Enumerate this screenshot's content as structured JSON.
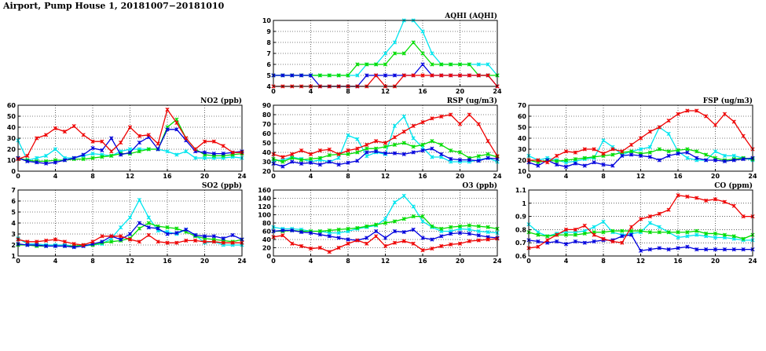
{
  "page": {
    "title": "Airport, Pump House 1, 20181007−20181010"
  },
  "series_colors": {
    "cyan": "#00e5ee",
    "green": "#00dd00",
    "blue": "#0000dd",
    "red": "#ee0000"
  },
  "chart_data": [
    {
      "id": "aqhi",
      "type": "line",
      "title": "AQHI (AQHI)",
      "x": [
        0,
        1,
        2,
        3,
        4,
        5,
        6,
        7,
        8,
        9,
        10,
        11,
        12,
        13,
        14,
        15,
        16,
        17,
        18,
        19,
        20,
        21,
        22,
        23,
        24
      ],
      "xlim": [
        0,
        24
      ],
      "xticks": [
        0,
        4,
        8,
        12,
        16,
        20,
        24
      ],
      "ylim": [
        4,
        10
      ],
      "yticks": [
        4,
        5,
        6,
        7,
        8,
        9,
        10
      ],
      "grid": true,
      "series": [
        {
          "color": "cyan",
          "values": [
            5,
            5,
            5,
            5,
            5,
            5,
            5,
            5,
            5,
            5,
            6,
            6,
            7,
            8,
            10,
            10,
            9,
            7,
            6,
            6,
            6,
            6,
            6,
            6,
            5
          ]
        },
        {
          "color": "green",
          "values": [
            5,
            5,
            5,
            5,
            5,
            5,
            5,
            5,
            5,
            6,
            6,
            6,
            6,
            7,
            7,
            8,
            7,
            6,
            6,
            6,
            6,
            6,
            5,
            5,
            5
          ]
        },
        {
          "color": "blue",
          "values": [
            5,
            5,
            5,
            5,
            5,
            4,
            4,
            4,
            4,
            4,
            5,
            5,
            5,
            5,
            5,
            5,
            6,
            5,
            5,
            5,
            5,
            5,
            5,
            5,
            4
          ]
        },
        {
          "color": "red",
          "values": [
            4,
            4,
            4,
            4,
            4,
            4,
            4,
            4,
            4,
            4,
            4,
            5,
            4,
            4,
            5,
            5,
            5,
            5,
            5,
            5,
            5,
            5,
            5,
            5,
            4
          ]
        }
      ]
    },
    {
      "id": "no2",
      "type": "line",
      "title": "NO2 (ppb)",
      "x": [
        0,
        1,
        2,
        3,
        4,
        5,
        6,
        7,
        8,
        9,
        10,
        11,
        12,
        13,
        14,
        15,
        16,
        17,
        18,
        19,
        20,
        21,
        22,
        23,
        24
      ],
      "xlim": [
        0,
        24
      ],
      "xticks": [
        0,
        4,
        8,
        12,
        16,
        20,
        24
      ],
      "ylim": [
        0,
        60
      ],
      "yticks": [
        0,
        10,
        20,
        30,
        40,
        50,
        60
      ],
      "grid": true,
      "series": [
        {
          "color": "cyan",
          "values": [
            28,
            10,
            12,
            14,
            20,
            12,
            12,
            14,
            16,
            15,
            14,
            18,
            20,
            20,
            20,
            20,
            18,
            15,
            18,
            12,
            12,
            12,
            12,
            13,
            12
          ]
        },
        {
          "color": "green",
          "values": [
            12,
            10,
            9,
            9,
            10,
            10,
            11,
            11,
            12,
            13,
            14,
            16,
            16,
            18,
            20,
            20,
            40,
            47,
            30,
            20,
            15,
            14,
            14,
            15,
            16
          ]
        },
        {
          "color": "blue",
          "values": [
            12,
            9,
            8,
            7,
            8,
            10,
            12,
            15,
            21,
            19,
            30,
            15,
            17,
            26,
            31,
            20,
            38,
            38,
            28,
            18,
            17,
            16,
            16,
            17,
            18
          ]
        },
        {
          "color": "red",
          "values": [
            11,
            14,
            30,
            33,
            39,
            36,
            41,
            33,
            27,
            27,
            18,
            26,
            40,
            32,
            33,
            25,
            56,
            44,
            30,
            20,
            27,
            27,
            23,
            17,
            17
          ]
        }
      ]
    },
    {
      "id": "rsp",
      "type": "line",
      "title": "RSP (ug/m3)",
      "x": [
        0,
        1,
        2,
        3,
        4,
        5,
        6,
        7,
        8,
        9,
        10,
        11,
        12,
        13,
        14,
        15,
        16,
        17,
        18,
        19,
        20,
        21,
        22,
        23,
        24
      ],
      "xlim": [
        0,
        24
      ],
      "xticks": [
        0,
        4,
        8,
        12,
        16,
        20,
        24
      ],
      "ylim": [
        20,
        90
      ],
      "yticks": [
        20,
        30,
        40,
        50,
        60,
        70,
        80,
        90
      ],
      "grid": true,
      "series": [
        {
          "color": "cyan",
          "values": [
            31,
            32,
            35,
            33,
            30,
            32,
            30,
            34,
            58,
            54,
            36,
            40,
            38,
            68,
            78,
            55,
            45,
            35,
            35,
            30,
            30,
            30,
            32,
            34,
            30
          ]
        },
        {
          "color": "green",
          "values": [
            33,
            30,
            34,
            32,
            33,
            34,
            37,
            38,
            38,
            40,
            44,
            44,
            46,
            48,
            50,
            46,
            48,
            52,
            48,
            42,
            40,
            34,
            36,
            38,
            35
          ]
        },
        {
          "color": "blue",
          "values": [
            28,
            25,
            30,
            28,
            29,
            27,
            30,
            27,
            29,
            31,
            40,
            41,
            39,
            39,
            38,
            40,
            42,
            44,
            38,
            33,
            32,
            32,
            31,
            34,
            33
          ]
        },
        {
          "color": "red",
          "values": [
            38,
            35,
            38,
            42,
            38,
            42,
            43,
            38,
            42,
            44,
            48,
            52,
            50,
            56,
            62,
            68,
            72,
            76,
            78,
            80,
            70,
            80,
            70,
            52,
            36
          ]
        }
      ]
    },
    {
      "id": "fsp",
      "type": "line",
      "title": "FSP (ug/m3)",
      "x": [
        0,
        1,
        2,
        3,
        4,
        5,
        6,
        7,
        8,
        9,
        10,
        11,
        12,
        13,
        14,
        15,
        16,
        17,
        18,
        19,
        20,
        21,
        22,
        23,
        24
      ],
      "xlim": [
        0,
        24
      ],
      "xticks": [
        0,
        4,
        8,
        12,
        16,
        20,
        24
      ],
      "ylim": [
        10,
        70
      ],
      "yticks": [
        10,
        20,
        30,
        40,
        50,
        60,
        70
      ],
      "grid": true,
      "series": [
        {
          "color": "cyan",
          "values": [
            24,
            20,
            22,
            20,
            18,
            19,
            21,
            22,
            38,
            32,
            25,
            28,
            30,
            32,
            50,
            44,
            28,
            22,
            20,
            20,
            28,
            24,
            24,
            22,
            20
          ]
        },
        {
          "color": "green",
          "values": [
            20,
            18,
            20,
            19,
            20,
            21,
            22,
            23,
            24,
            25,
            27,
            28,
            26,
            27,
            30,
            28,
            29,
            30,
            28,
            25,
            22,
            20,
            21,
            22,
            21
          ]
        },
        {
          "color": "blue",
          "values": [
            18,
            15,
            20,
            16,
            14,
            17,
            15,
            18,
            16,
            15,
            24,
            25,
            24,
            23,
            20,
            24,
            26,
            27,
            22,
            20,
            20,
            19,
            20,
            21,
            22
          ]
        },
        {
          "color": "red",
          "values": [
            20,
            20,
            18,
            24,
            28,
            27,
            30,
            30,
            26,
            30,
            28,
            34,
            40,
            46,
            50,
            56,
            62,
            65,
            65,
            60,
            52,
            62,
            55,
            42,
            30
          ]
        }
      ]
    },
    {
      "id": "so2",
      "type": "line",
      "title": "SO2 (ppb)",
      "x": [
        0,
        1,
        2,
        3,
        4,
        5,
        6,
        7,
        8,
        9,
        10,
        11,
        12,
        13,
        14,
        15,
        16,
        17,
        18,
        19,
        20,
        21,
        22,
        23,
        24
      ],
      "xlim": [
        0,
        24
      ],
      "xticks": [
        0,
        4,
        8,
        12,
        16,
        20,
        24
      ],
      "ylim": [
        1,
        7
      ],
      "yticks": [
        1,
        2,
        3,
        4,
        5,
        6,
        7
      ],
      "grid": true,
      "series": [
        {
          "color": "cyan",
          "values": [
            2.6,
            2.1,
            2.1,
            2.0,
            2.0,
            2.0,
            1.9,
            1.9,
            2.0,
            2.1,
            2.6,
            3.6,
            4.5,
            6.1,
            4.5,
            3.3,
            3.2,
            3.0,
            3.4,
            2.9,
            2.2,
            2.3,
            2.0,
            2.0,
            2.0
          ]
        },
        {
          "color": "green",
          "values": [
            2.0,
            2.0,
            1.9,
            1.9,
            1.9,
            1.9,
            1.9,
            2.0,
            2.0,
            2.2,
            2.3,
            2.4,
            2.6,
            3.5,
            4.0,
            3.7,
            3.6,
            3.5,
            3.2,
            2.8,
            2.6,
            2.5,
            2.4,
            2.3,
            2.5
          ]
        },
        {
          "color": "blue",
          "values": [
            2.1,
            2.0,
            2.0,
            1.9,
            1.9,
            1.9,
            1.8,
            1.9,
            2.1,
            2.3,
            2.8,
            2.5,
            3.0,
            4.0,
            3.6,
            3.5,
            3.0,
            3.1,
            3.4,
            2.9,
            2.8,
            2.8,
            2.6,
            2.9,
            2.5
          ]
        },
        {
          "color": "red",
          "values": [
            2.5,
            2.3,
            2.3,
            2.4,
            2.5,
            2.3,
            2.1,
            2.0,
            2.3,
            2.8,
            2.8,
            2.8,
            2.5,
            2.3,
            2.9,
            2.3,
            2.2,
            2.2,
            2.4,
            2.4,
            2.3,
            2.3,
            2.2,
            2.2,
            2.2
          ]
        }
      ]
    },
    {
      "id": "o3",
      "type": "line",
      "title": "O3 (ppb)",
      "x": [
        0,
        1,
        2,
        3,
        4,
        5,
        6,
        7,
        8,
        9,
        10,
        11,
        12,
        13,
        14,
        15,
        16,
        17,
        18,
        19,
        20,
        21,
        22,
        23,
        24
      ],
      "xlim": [
        0,
        24
      ],
      "xticks": [
        0,
        4,
        8,
        12,
        16,
        20,
        24
      ],
      "ylim": [
        0,
        160
      ],
      "yticks": [
        0,
        20,
        40,
        60,
        80,
        100,
        120,
        140,
        160
      ],
      "grid": true,
      "series": [
        {
          "color": "cyan",
          "values": [
            70,
            66,
            66,
            64,
            60,
            60,
            56,
            56,
            60,
            66,
            70,
            74,
            90,
            130,
            146,
            120,
            84,
            70,
            60,
            60,
            66,
            64,
            60,
            58,
            56
          ]
        },
        {
          "color": "green",
          "values": [
            60,
            60,
            62,
            60,
            60,
            60,
            62,
            64,
            66,
            68,
            72,
            76,
            80,
            84,
            90,
            96,
            96,
            72,
            66,
            70,
            72,
            74,
            72,
            70,
            66
          ]
        },
        {
          "color": "blue",
          "values": [
            60,
            62,
            62,
            58,
            56,
            52,
            48,
            44,
            40,
            38,
            44,
            60,
            44,
            60,
            58,
            64,
            44,
            40,
            48,
            54,
            56,
            54,
            50,
            46,
            44
          ]
        },
        {
          "color": "red",
          "values": [
            46,
            50,
            30,
            24,
            18,
            20,
            10,
            20,
            30,
            38,
            30,
            48,
            24,
            32,
            36,
            30,
            14,
            18,
            24,
            28,
            30,
            36,
            38,
            40,
            42
          ]
        }
      ]
    },
    {
      "id": "co",
      "type": "line",
      "title": "CO (ppm)",
      "x": [
        0,
        1,
        2,
        3,
        4,
        5,
        6,
        7,
        8,
        9,
        10,
        11,
        12,
        13,
        14,
        15,
        16,
        17,
        18,
        19,
        20,
        21,
        22,
        23,
        24
      ],
      "xlim": [
        0,
        24
      ],
      "xticks": [
        0,
        4,
        8,
        12,
        16,
        20,
        24
      ],
      "ylim": [
        0.6,
        1.1
      ],
      "yticks": [
        0.6,
        0.7,
        0.8,
        0.9,
        1.0,
        1.1
      ],
      "grid": true,
      "series": [
        {
          "color": "cyan",
          "values": [
            0.84,
            0.78,
            0.75,
            0.77,
            0.78,
            0.78,
            0.79,
            0.82,
            0.86,
            0.78,
            0.76,
            0.77,
            0.78,
            0.85,
            0.82,
            0.78,
            0.74,
            0.75,
            0.76,
            0.75,
            0.74,
            0.74,
            0.73,
            0.72,
            0.72
          ]
        },
        {
          "color": "green",
          "values": [
            0.78,
            0.76,
            0.75,
            0.76,
            0.76,
            0.76,
            0.77,
            0.78,
            0.78,
            0.79,
            0.79,
            0.79,
            0.79,
            0.78,
            0.78,
            0.78,
            0.78,
            0.78,
            0.79,
            0.77,
            0.77,
            0.76,
            0.75,
            0.73,
            0.76
          ]
        },
        {
          "color": "blue",
          "values": [
            0.72,
            0.71,
            0.7,
            0.71,
            0.69,
            0.71,
            0.7,
            0.71,
            0.72,
            0.72,
            0.75,
            0.76,
            0.64,
            0.65,
            0.66,
            0.65,
            0.66,
            0.67,
            0.65,
            0.65,
            0.65,
            0.65,
            0.65,
            0.65,
            0.65
          ]
        },
        {
          "color": "red",
          "values": [
            0.66,
            0.67,
            0.72,
            0.76,
            0.8,
            0.8,
            0.83,
            0.76,
            0.73,
            0.71,
            0.7,
            0.82,
            0.88,
            0.9,
            0.92,
            0.95,
            1.06,
            1.05,
            1.04,
            1.02,
            1.03,
            1.01,
            0.98,
            0.9,
            0.9
          ]
        }
      ]
    }
  ]
}
